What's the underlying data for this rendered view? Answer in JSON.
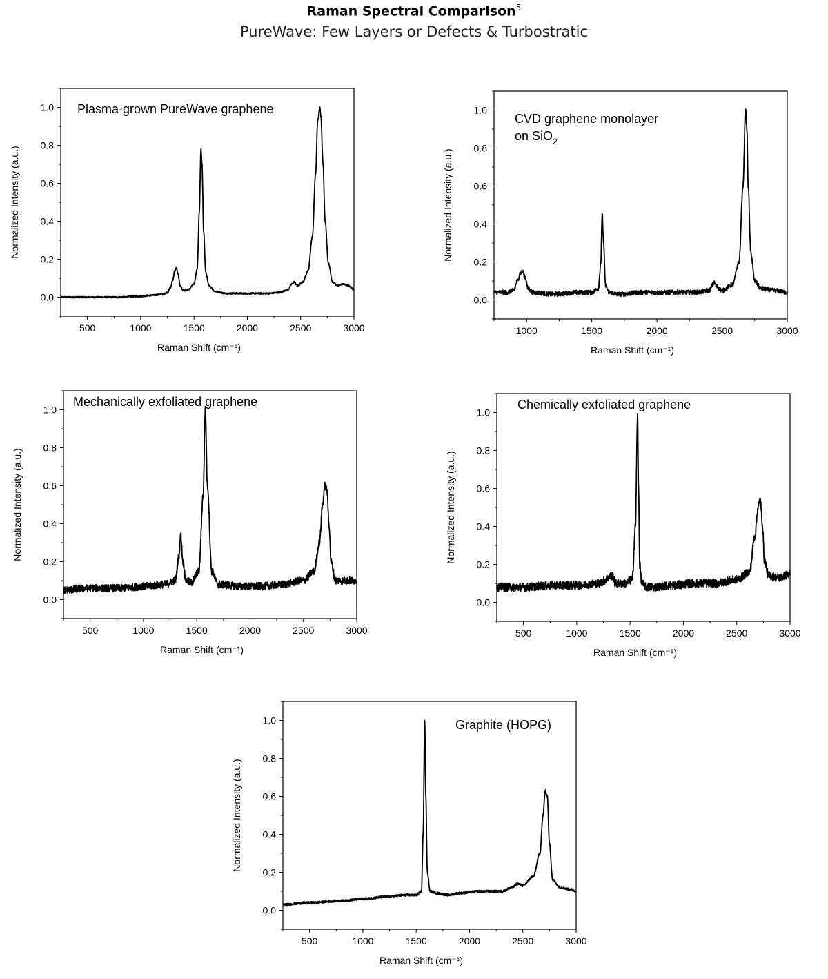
{
  "figure": {
    "title": "Raman Spectral Comparison",
    "title_superscript": "5",
    "subtitle": "PureWave: Few Layers or Defects & Turbostratic"
  },
  "chart_data": [
    {
      "type": "line",
      "annotation": "Plasma-grown PureWave graphene",
      "xlabel": "Raman Shift (cm⁻¹)",
      "ylabel": "Normalized Intensity (a.u.)",
      "xlim": [
        250,
        3000
      ],
      "ylim": [
        -0.1,
        1.1
      ],
      "xticks": [
        500,
        1000,
        1500,
        2000,
        2500,
        3000
      ],
      "yticks": [
        0.0,
        0.2,
        0.4,
        0.6,
        0.8,
        1.0
      ],
      "xtick_labels": [
        "500",
        "1000",
        "1500",
        "2000",
        "2500",
        "3000"
      ],
      "ytick_labels": [
        "0.0",
        "0.2",
        "0.4",
        "0.6",
        "0.8",
        "1.0"
      ],
      "grid": false,
      "legend": "none",
      "series": [
        {
          "x": [
            250,
            500,
            800,
            1000,
            1100,
            1200,
            1250,
            1280,
            1300,
            1320,
            1335,
            1350,
            1370,
            1400,
            1450,
            1500,
            1530,
            1550,
            1565,
            1575,
            1590,
            1610,
            1640,
            1700,
            1800,
            1900,
            2000,
            2100,
            2200,
            2300,
            2380,
            2420,
            2440,
            2470,
            2520,
            2570,
            2610,
            2640,
            2660,
            2680,
            2690,
            2710,
            2730,
            2760,
            2800,
            2850,
            2900,
            2950,
            3000
          ],
          "y": [
            0.0,
            0.0,
            0.0,
            0.005,
            0.01,
            0.015,
            0.025,
            0.05,
            0.09,
            0.14,
            0.155,
            0.12,
            0.06,
            0.035,
            0.04,
            0.07,
            0.15,
            0.45,
            0.78,
            0.7,
            0.35,
            0.13,
            0.06,
            0.03,
            0.02,
            0.02,
            0.02,
            0.02,
            0.02,
            0.025,
            0.04,
            0.07,
            0.08,
            0.06,
            0.08,
            0.14,
            0.32,
            0.65,
            0.93,
            1.0,
            0.95,
            0.7,
            0.4,
            0.18,
            0.08,
            0.06,
            0.07,
            0.06,
            0.04
          ]
        }
      ]
    },
    {
      "type": "line",
      "annotation": "CVD graphene monolayer",
      "annotation_line2": "on SiO",
      "annotation_line2_sub": "2",
      "xlabel": "Raman Shift (cm⁻¹)",
      "ylabel": "Normalized Intensity (a.u.)",
      "xlim": [
        750,
        3000
      ],
      "ylim": [
        -0.1,
        1.1
      ],
      "xticks": [
        1000,
        1500,
        2000,
        2500,
        3000
      ],
      "yticks": [
        0.0,
        0.2,
        0.4,
        0.6,
        0.8,
        1.0
      ],
      "xtick_labels": [
        "1000",
        "1500",
        "2000",
        "2500",
        "3000"
      ],
      "ytick_labels": [
        "0.0",
        "0.2",
        "0.4",
        "0.6",
        "0.8",
        "1.0"
      ],
      "grid": false,
      "legend": "none",
      "series": [
        {
          "x": [
            750,
            850,
            900,
            930,
            950,
            970,
            990,
            1010,
            1050,
            1200,
            1400,
            1500,
            1550,
            1570,
            1580,
            1590,
            1605,
            1630,
            1700,
            1900,
            2100,
            2300,
            2400,
            2440,
            2460,
            2500,
            2580,
            2630,
            2660,
            2680,
            2690,
            2700,
            2720,
            2750,
            2800,
            2900,
            3000
          ],
          "y": [
            0.04,
            0.04,
            0.05,
            0.1,
            0.14,
            0.15,
            0.12,
            0.06,
            0.04,
            0.03,
            0.04,
            0.04,
            0.06,
            0.2,
            0.46,
            0.3,
            0.08,
            0.04,
            0.03,
            0.04,
            0.04,
            0.04,
            0.05,
            0.09,
            0.07,
            0.05,
            0.08,
            0.2,
            0.6,
            1.0,
            0.9,
            0.6,
            0.25,
            0.1,
            0.06,
            0.05,
            0.04
          ]
        }
      ]
    },
    {
      "type": "line",
      "annotation": "Mechanically exfoliated graphene",
      "xlabel": "Raman Shift (cm⁻¹)",
      "ylabel": "Normalized Intensity (a.u.)",
      "xlim": [
        250,
        3000
      ],
      "ylim": [
        -0.1,
        1.1
      ],
      "xticks": [
        500,
        1000,
        1500,
        2000,
        2500,
        3000
      ],
      "yticks": [
        0.0,
        0.2,
        0.4,
        0.6,
        0.8,
        1.0
      ],
      "xtick_labels": [
        "500",
        "1000",
        "1500",
        "2000",
        "2500",
        "3000"
      ],
      "ytick_labels": [
        "0.0",
        "0.2",
        "0.4",
        "0.6",
        "0.8",
        "1.0"
      ],
      "grid": false,
      "legend": "none",
      "series": [
        {
          "x": [
            250,
            500,
            800,
            1000,
            1200,
            1300,
            1330,
            1350,
            1370,
            1400,
            1450,
            1520,
            1560,
            1580,
            1600,
            1640,
            1700,
            1900,
            2100,
            2300,
            2500,
            2600,
            2650,
            2680,
            2700,
            2720,
            2740,
            2760,
            2800,
            2900,
            3000
          ],
          "y": [
            0.05,
            0.06,
            0.06,
            0.07,
            0.08,
            0.1,
            0.22,
            0.34,
            0.2,
            0.1,
            0.09,
            0.15,
            0.55,
            1.0,
            0.6,
            0.15,
            0.08,
            0.07,
            0.07,
            0.08,
            0.1,
            0.15,
            0.3,
            0.5,
            0.6,
            0.58,
            0.4,
            0.2,
            0.1,
            0.1,
            0.1
          ]
        }
      ]
    },
    {
      "type": "line",
      "annotation": "Chemically exfoliated graphene",
      "xlabel": "Raman Shift (cm⁻¹)",
      "ylabel": "Normalized Intensity (a.u.)",
      "xlim": [
        250,
        3000
      ],
      "ylim": [
        -0.1,
        1.1
      ],
      "xticks": [
        500,
        1000,
        1500,
        2000,
        2500,
        3000
      ],
      "yticks": [
        0.0,
        0.2,
        0.4,
        0.6,
        0.8,
        1.0
      ],
      "xtick_labels": [
        "500",
        "1000",
        "1500",
        "2000",
        "2500",
        "3000"
      ],
      "ytick_labels": [
        "0.0",
        "0.2",
        "0.4",
        "0.6",
        "0.8",
        "1.0"
      ],
      "grid": false,
      "legend": "none",
      "series": [
        {
          "x": [
            250,
            500,
            800,
            1000,
            1200,
            1340,
            1360,
            1380,
            1450,
            1520,
            1550,
            1570,
            1580,
            1590,
            1610,
            1650,
            1700,
            1900,
            2100,
            2300,
            2500,
            2620,
            2670,
            2700,
            2720,
            2740,
            2760,
            2800,
            2900,
            3000
          ],
          "y": [
            0.08,
            0.08,
            0.09,
            0.09,
            0.1,
            0.14,
            0.1,
            0.1,
            0.1,
            0.12,
            0.4,
            0.98,
            0.6,
            0.2,
            0.1,
            0.08,
            0.08,
            0.09,
            0.1,
            0.1,
            0.12,
            0.16,
            0.35,
            0.5,
            0.54,
            0.42,
            0.22,
            0.14,
            0.13,
            0.15
          ]
        }
      ]
    },
    {
      "type": "line",
      "annotation": "Graphite (HOPG)",
      "xlabel": "Raman Shift (cm⁻¹)",
      "ylabel": "Normalized Intensity (a.u.)",
      "xlim": [
        250,
        3000
      ],
      "ylim": [
        -0.1,
        1.1
      ],
      "xticks": [
        500,
        1000,
        1500,
        2000,
        2500,
        3000
      ],
      "yticks": [
        0.0,
        0.2,
        0.4,
        0.6,
        0.8,
        1.0
      ],
      "xtick_labels": [
        "500",
        "1000",
        "1500",
        "2000",
        "2500",
        "3000"
      ],
      "ytick_labels": [
        "0.0",
        "0.2",
        "0.4",
        "0.6",
        "0.8",
        "1.0"
      ],
      "grid": false,
      "legend": "none",
      "series": [
        {
          "x": [
            250,
            500,
            800,
            1000,
            1200,
            1400,
            1500,
            1550,
            1565,
            1580,
            1590,
            1605,
            1630,
            1700,
            1800,
            1900,
            2100,
            2300,
            2400,
            2450,
            2500,
            2600,
            2660,
            2690,
            2710,
            2730,
            2750,
            2780,
            2850,
            2950,
            3000
          ],
          "y": [
            0.03,
            0.04,
            0.05,
            0.06,
            0.07,
            0.08,
            0.08,
            0.1,
            0.4,
            1.0,
            0.6,
            0.2,
            0.1,
            0.09,
            0.08,
            0.09,
            0.1,
            0.1,
            0.12,
            0.14,
            0.13,
            0.18,
            0.3,
            0.5,
            0.63,
            0.6,
            0.35,
            0.16,
            0.12,
            0.11,
            0.1
          ]
        }
      ]
    }
  ]
}
